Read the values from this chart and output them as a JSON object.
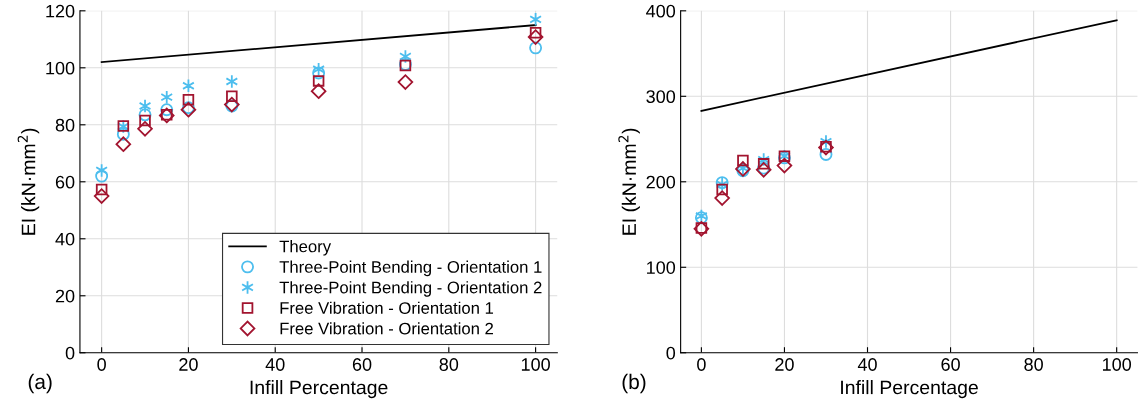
{
  "chart_data": [
    {
      "type": "scatter",
      "xlabel": "Infill Percentage",
      "ylabel": "EI (kN·mm$^{2}$)",
      "annotations": [
        "(a)"
      ],
      "xlim": [
        -5,
        105
      ],
      "xticks": [
        0,
        20,
        40,
        60,
        80,
        100
      ],
      "ylim": [
        0,
        120
      ],
      "yticks": [
        0,
        20,
        40,
        60,
        80,
        100,
        120
      ],
      "grid": true,
      "legend": "bottom right",
      "series": [
        {
          "name": "Theory",
          "type": "line",
          "color": "#000000",
          "marker": "none",
          "line_style": "solid",
          "x": [
            0,
            100
          ],
          "values": [
            102,
            115
          ]
        },
        {
          "name": "Three-Point Bending - Orientation 1",
          "color": "#4dbeee",
          "marker": "circle",
          "x": [
            0,
            5,
            10,
            15,
            20,
            30,
            50,
            70,
            100
          ],
          "values": [
            62,
            76.7,
            83.5,
            85.3,
            86,
            86.6,
            98.2,
            101.2,
            107
          ]
        },
        {
          "name": "Three-Point Bending - Orientation 2",
          "color": "#4dbeee",
          "marker": "cross",
          "x": [
            0,
            5,
            10,
            15,
            20,
            30,
            50,
            70,
            100
          ],
          "values": [
            64,
            79.4,
            86.6,
            89.7,
            93.7,
            95.2,
            99.5,
            104,
            117
          ]
        },
        {
          "name": "Free Vibration - Orientation 1",
          "color": "#a2142f",
          "marker": "square",
          "x": [
            0,
            5,
            10,
            15,
            20,
            30,
            50,
            70,
            100
          ],
          "values": [
            57.3,
            79.6,
            81.5,
            83.5,
            88.8,
            90,
            95.4,
            100.8,
            112.3
          ]
        },
        {
          "name": "Free Vibration - Orientation 2",
          "color": "#a2142f",
          "marker": "diamond",
          "x": [
            0,
            5,
            10,
            15,
            20,
            30,
            50,
            70,
            100
          ],
          "values": [
            55,
            73.2,
            78.6,
            83.3,
            85.3,
            87.1,
            91.8,
            95,
            110.8
          ]
        }
      ]
    },
    {
      "type": "scatter",
      "xlabel": "Infill Percentage",
      "ylabel": "EI (kN·mm$^{2}$)",
      "annotations": [
        "(b)"
      ],
      "xlim": [
        -5,
        105
      ],
      "xticks": [
        0,
        20,
        40,
        60,
        80,
        100
      ],
      "ylim": [
        0,
        400
      ],
      "yticks": [
        0,
        100,
        200,
        300,
        400
      ],
      "grid": true,
      "series": [
        {
          "type": "line",
          "color": "#000000",
          "marker": "none",
          "line_style": "solid",
          "x": [
            0,
            100
          ],
          "values": [
            283,
            389
          ]
        },
        {
          "color": "#4dbeee",
          "marker": "circle",
          "x": [
            0,
            5,
            10,
            15,
            20,
            30
          ],
          "values": [
            158,
            199,
            213,
            216,
            228,
            232
          ]
        },
        {
          "color": "#4dbeee",
          "marker": "cross",
          "x": [
            0,
            5,
            10,
            15,
            20,
            30
          ],
          "values": [
            160,
            197,
            216,
            226,
            230,
            247
          ]
        },
        {
          "color": "#a2142f",
          "marker": "square",
          "x": [
            0,
            5,
            10,
            15,
            20,
            30
          ],
          "values": [
            146,
            191,
            225,
            221,
            230,
            241
          ]
        },
        {
          "color": "#a2142f",
          "marker": "diamond",
          "x": [
            0,
            5,
            10,
            15,
            20,
            30
          ],
          "values": [
            145,
            181,
            215,
            214,
            219,
            240
          ]
        }
      ]
    }
  ]
}
